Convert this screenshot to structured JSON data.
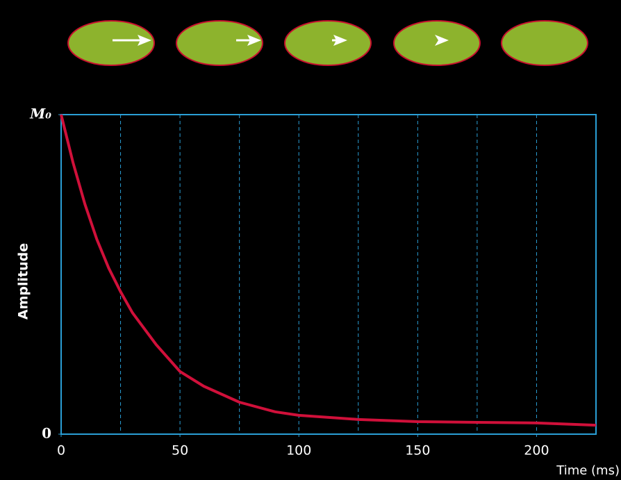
{
  "chart_data": {
    "type": "line",
    "y_label": "Amplitude",
    "x_label": "Time (ms)",
    "x": [
      0,
      5,
      10,
      15,
      20,
      25,
      30,
      40,
      50,
      60,
      75,
      90,
      100,
      125,
      150,
      175,
      200,
      225
    ],
    "series": [
      {
        "color": "#d0103a",
        "values": [
          1.0,
          0.85,
          0.72,
          0.61,
          0.52,
          0.446,
          0.38,
          0.28,
          0.196,
          0.15,
          0.1,
          0.07,
          0.059,
          0.046,
          0.039,
          0.037,
          0.035,
          0.028
        ]
      }
    ],
    "xlim": [
      0,
      225
    ],
    "xticks": [
      0,
      50,
      100,
      150,
      200
    ],
    "xgrid": [
      25,
      50,
      75,
      100,
      125,
      150,
      175,
      200
    ],
    "ylim": [
      0,
      1
    ],
    "yticks": [
      0,
      {
        "value": 1,
        "label": "M₀"
      }
    ],
    "frame_color": "#2a9fd6"
  }
}
